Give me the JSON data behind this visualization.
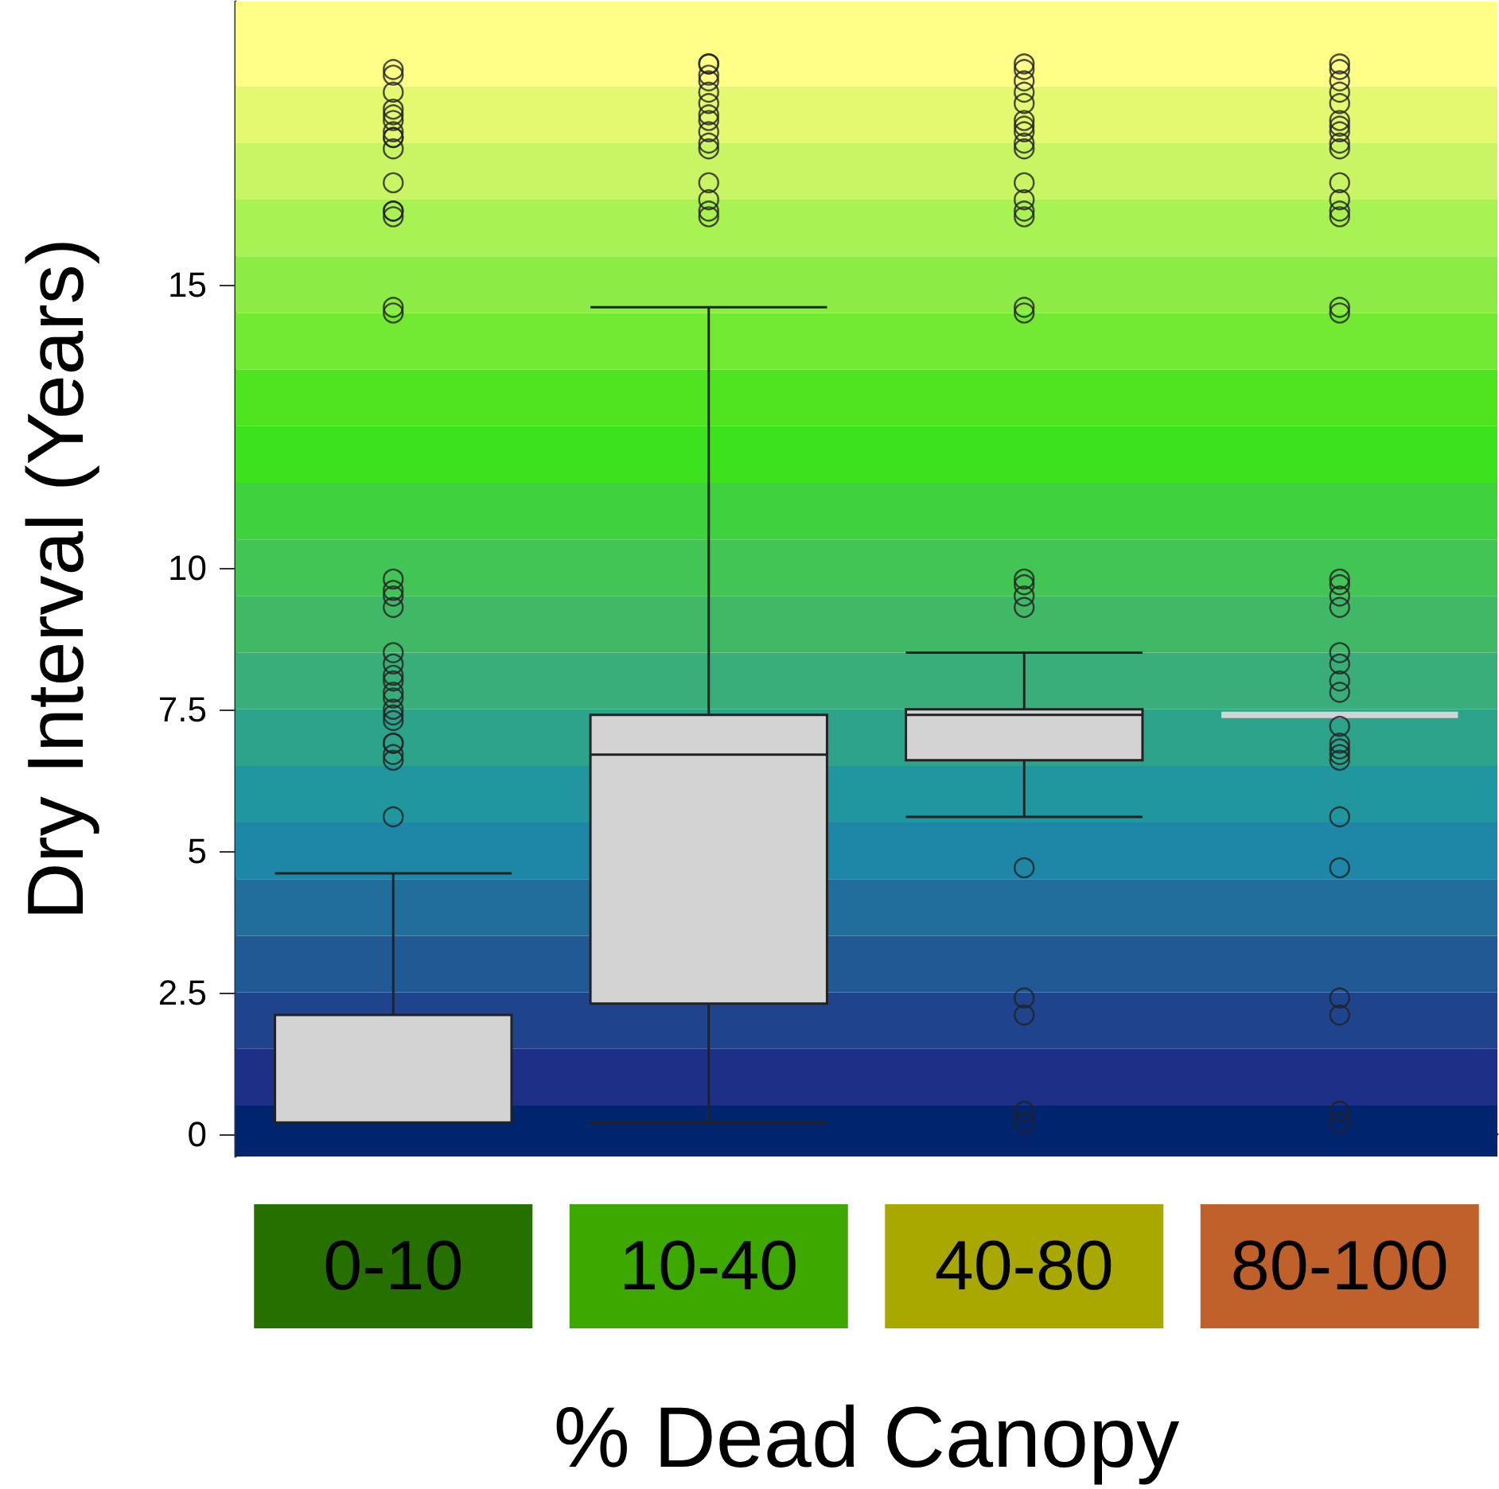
{
  "chart_data": {
    "type": "box",
    "xlabel": "% Dead Canopy",
    "ylabel": "Dry Interval (Years)",
    "categories": [
      "0-10",
      "10-40",
      "40-80",
      "80-100"
    ],
    "ylim": [
      -0.4,
      20
    ],
    "yticks": [
      0,
      2.5,
      5,
      7.5,
      10,
      15
    ],
    "series": [
      {
        "color": "#d3d3d3",
        "boxes": [
          {
            "low": 0.2,
            "q1": 0.2,
            "median": 0.2,
            "q3": 2.1,
            "high": 4.6,
            "outliers": [
              5.6,
              6.6,
              6.7,
              6.9,
              6.9,
              7.3,
              7.4,
              7.5,
              7.7,
              7.8,
              8.0,
              8.1,
              8.3,
              8.5,
              9.3,
              9.5,
              9.6,
              9.8,
              14.5,
              14.6,
              16.2,
              16.3,
              16.3,
              16.8,
              17.4,
              17.6,
              17.6,
              17.7,
              17.9,
              18.0,
              18.1,
              18.4,
              18.7,
              18.8
            ]
          },
          {
            "low": 0.2,
            "q1": 2.3,
            "median": 6.7,
            "q3": 7.4,
            "high": 14.6,
            "outliers": [
              16.2,
              16.3,
              16.5,
              16.8,
              17.4,
              17.5,
              17.7,
              17.9,
              18.0,
              18.2,
              18.4,
              18.6,
              18.7,
              18.9,
              18.9
            ]
          },
          {
            "low": 5.6,
            "q1": 6.6,
            "median": 7.4,
            "q3": 7.5,
            "high": 8.5,
            "outliers": [
              0.2,
              0.4,
              2.1,
              2.4,
              4.7,
              9.3,
              9.5,
              9.7,
              9.8,
              14.5,
              14.6,
              16.2,
              16.3,
              16.5,
              16.8,
              17.4,
              17.5,
              17.7,
              17.8,
              17.9,
              18.2,
              18.4,
              18.6,
              18.8,
              18.9
            ]
          },
          {
            "low": 7.4,
            "q1": 7.4,
            "median": 7.4,
            "q3": 7.4,
            "high": 7.4,
            "outliers": [
              0.2,
              0.4,
              2.1,
              2.4,
              4.7,
              5.6,
              6.6,
              6.7,
              6.8,
              6.9,
              7.2,
              7.8,
              8.0,
              8.3,
              8.5,
              9.3,
              9.5,
              9.7,
              9.8,
              14.5,
              14.6,
              16.2,
              16.3,
              16.5,
              16.8,
              17.4,
              17.5,
              17.7,
              17.8,
              17.9,
              18.2,
              18.4,
              18.6,
              18.8,
              18.9
            ]
          }
        ]
      }
    ],
    "bands": [
      {
        "axis": "y",
        "from": -0.4,
        "to": 0.5,
        "color": "#00246e"
      },
      {
        "axis": "y",
        "from": 0.5,
        "to": 1.5,
        "color": "#1d2f86"
      },
      {
        "axis": "y",
        "from": 1.5,
        "to": 2.5,
        "color": "#1f448d"
      },
      {
        "axis": "y",
        "from": 2.5,
        "to": 3.5,
        "color": "#215994"
      },
      {
        "axis": "y",
        "from": 3.5,
        "to": 4.5,
        "color": "#216d9c"
      },
      {
        "axis": "y",
        "from": 4.5,
        "to": 5.5,
        "color": "#1e86a6"
      },
      {
        "axis": "y",
        "from": 5.5,
        "to": 6.5,
        "color": "#20979f"
      },
      {
        "axis": "y",
        "from": 6.5,
        "to": 7.5,
        "color": "#2da38c"
      },
      {
        "axis": "y",
        "from": 7.5,
        "to": 8.5,
        "color": "#3aae7a"
      },
      {
        "axis": "y",
        "from": 8.5,
        "to": 9.5,
        "color": "#40b866"
      },
      {
        "axis": "y",
        "from": 9.5,
        "to": 10.5,
        "color": "#42c554"
      },
      {
        "axis": "y",
        "from": 10.5,
        "to": 11.5,
        "color": "#3fd23e"
      },
      {
        "axis": "y",
        "from": 11.5,
        "to": 12.5,
        "color": "#3ce21e"
      },
      {
        "axis": "y",
        "from": 12.5,
        "to": 13.5,
        "color": "#4ee520"
      },
      {
        "axis": "y",
        "from": 13.5,
        "to": 14.5,
        "color": "#72ea33"
      },
      {
        "axis": "y",
        "from": 14.5,
        "to": 15.5,
        "color": "#8cec45"
      },
      {
        "axis": "y",
        "from": 15.5,
        "to": 16.5,
        "color": "#a8f254"
      },
      {
        "axis": "y",
        "from": 16.5,
        "to": 17.5,
        "color": "#c9f564"
      },
      {
        "axis": "y",
        "from": 17.5,
        "to": 18.5,
        "color": "#e4f970"
      },
      {
        "axis": "y",
        "from": 18.5,
        "to": 20,
        "color": "#ffff88"
      }
    ]
  }
}
